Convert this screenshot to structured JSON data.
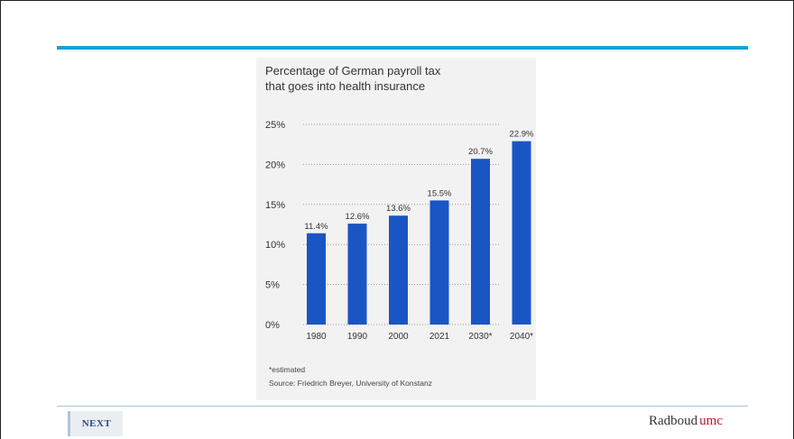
{
  "slide": {
    "accent_color": "#1aa0d8",
    "footer_left_logo": "NEXT",
    "brand_name_part1": "Radboud",
    "brand_name_part2": "umc",
    "brand_accent_color": "#c8102e"
  },
  "chart_data": {
    "type": "bar",
    "title_line1": "Percentage of German payroll tax",
    "title_line2": "that goes into health insurance",
    "categories": [
      "1980",
      "1990",
      "2000",
      "2021",
      "2030*",
      "2040*"
    ],
    "values": [
      11.4,
      12.6,
      13.6,
      15.5,
      20.7,
      22.9
    ],
    "value_labels": [
      "11.4%",
      "12.6%",
      "13.6%",
      "15.5%",
      "20.7%",
      "22.9%"
    ],
    "ylim": [
      0,
      25
    ],
    "y_ticks": [
      "0%",
      "5%",
      "10%",
      "15%",
      "20%",
      "25%"
    ],
    "bar_color": "#1a55c4",
    "grid": "dotted horizontal",
    "footnote": "*estimated",
    "source": "Source: Friedrich Breyer, University of Konstanz"
  }
}
